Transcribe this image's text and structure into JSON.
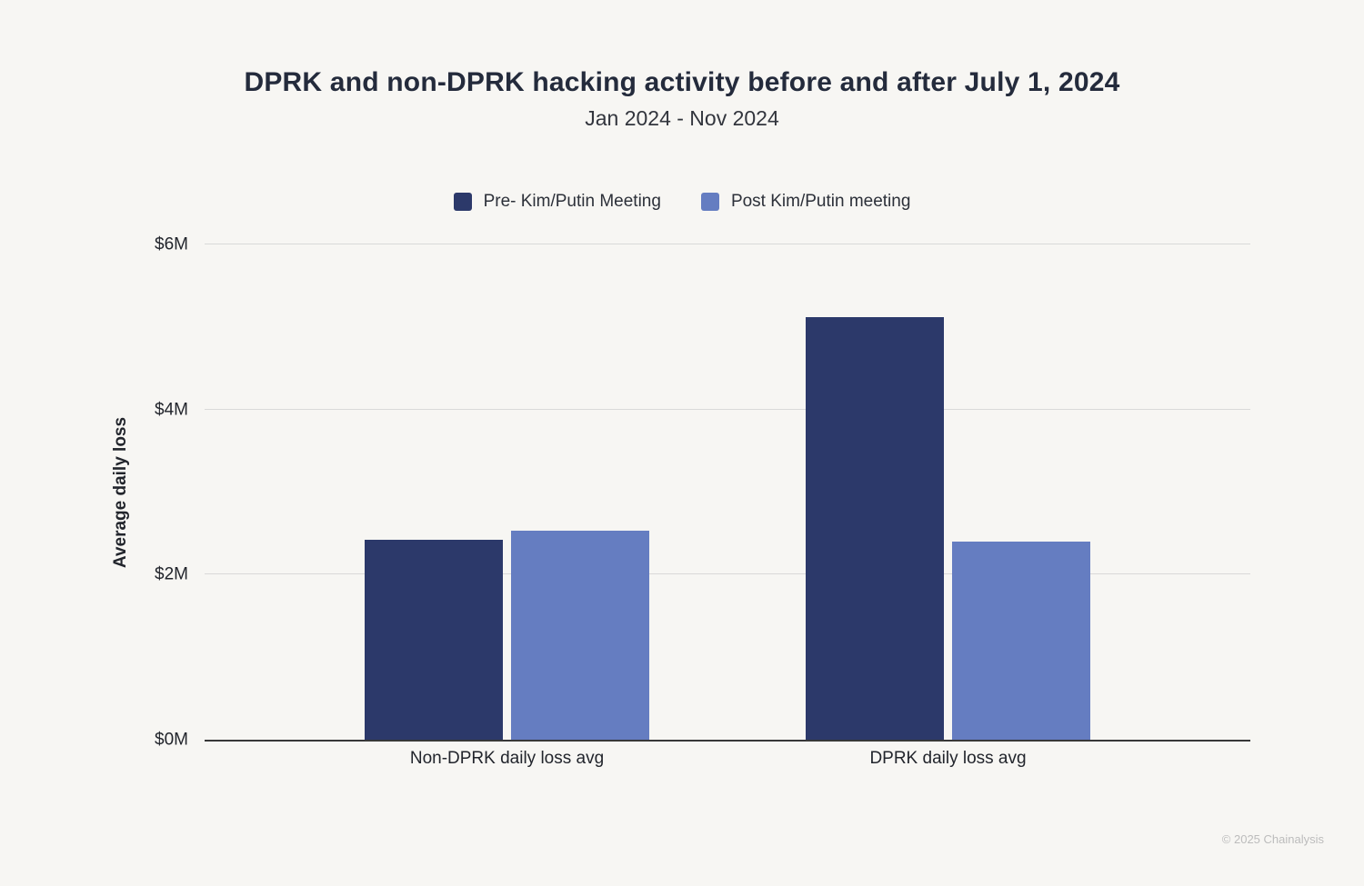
{
  "chart_data": {
    "type": "bar",
    "title": "DPRK and non-DPRK hacking activity before and after July 1, 2024",
    "subtitle": "Jan 2024 - Nov 2024",
    "categories": [
      "Non-DPRK daily loss avg",
      "DPRK daily loss avg"
    ],
    "series": [
      {
        "name": "Pre- Kim/Putin Meeting",
        "color": "#2c396a",
        "values": [
          2.42,
          5.12
        ]
      },
      {
        "name": "Post Kim/Putin meeting",
        "color": "#657dc1",
        "values": [
          2.53,
          2.4
        ]
      }
    ],
    "xlabel": "",
    "ylabel": "Average daily loss",
    "yticks": [
      "$0M",
      "$2M",
      "$4M",
      "$6M"
    ],
    "ytick_values": [
      0,
      2,
      4,
      6
    ],
    "ylim": [
      0,
      6
    ],
    "unit": "$M",
    "grid": "horizontal",
    "legend_position": "top"
  },
  "colors": {
    "background": "#f7f6f3",
    "gridline": "#d9d9d9",
    "axis": "#383838",
    "text": "#22252c"
  },
  "footer": {
    "copyright": "© 2025 Chainalysis"
  }
}
